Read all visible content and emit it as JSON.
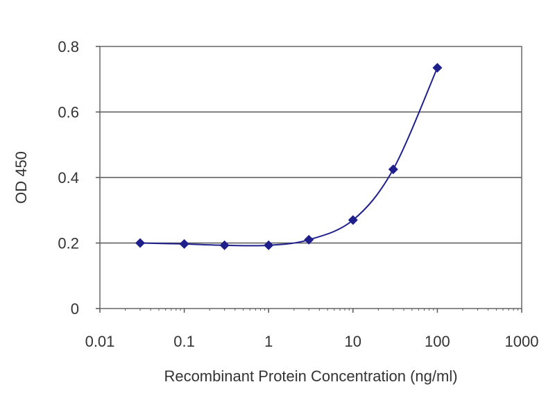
{
  "chart_data": {
    "type": "scatter",
    "title": "",
    "xlabel": "Recombinant Protein Concentration (ng/ml)",
    "ylabel": "OD 450",
    "x_scale": "log",
    "xlim": [
      0.01,
      1000
    ],
    "ylim": [
      0,
      0.8
    ],
    "x_tick_labels": [
      "0.01",
      "0.1",
      "1",
      "10",
      "100",
      "1000"
    ],
    "x_tick_values": [
      0.01,
      0.1,
      1,
      10,
      100,
      1000
    ],
    "y_tick_labels": [
      "0",
      "0.2",
      "0.4",
      "0.6",
      "0.8"
    ],
    "y_tick_values": [
      0,
      0.2,
      0.4,
      0.6,
      0.8
    ],
    "gridlines_y": [
      0.2,
      0.4,
      0.6
    ],
    "grid": "horizontal",
    "series": [
      {
        "x": [
          0.03,
          0.1,
          0.3,
          1,
          3,
          10,
          30,
          100
        ],
        "y": [
          0.2,
          0.197,
          0.193,
          0.193,
          0.21,
          0.27,
          0.425,
          0.735
        ],
        "fit_curve": true
      }
    ],
    "colors": {
      "series": "#1f1f8c",
      "grid": "#555555",
      "axis": "#555555"
    }
  }
}
